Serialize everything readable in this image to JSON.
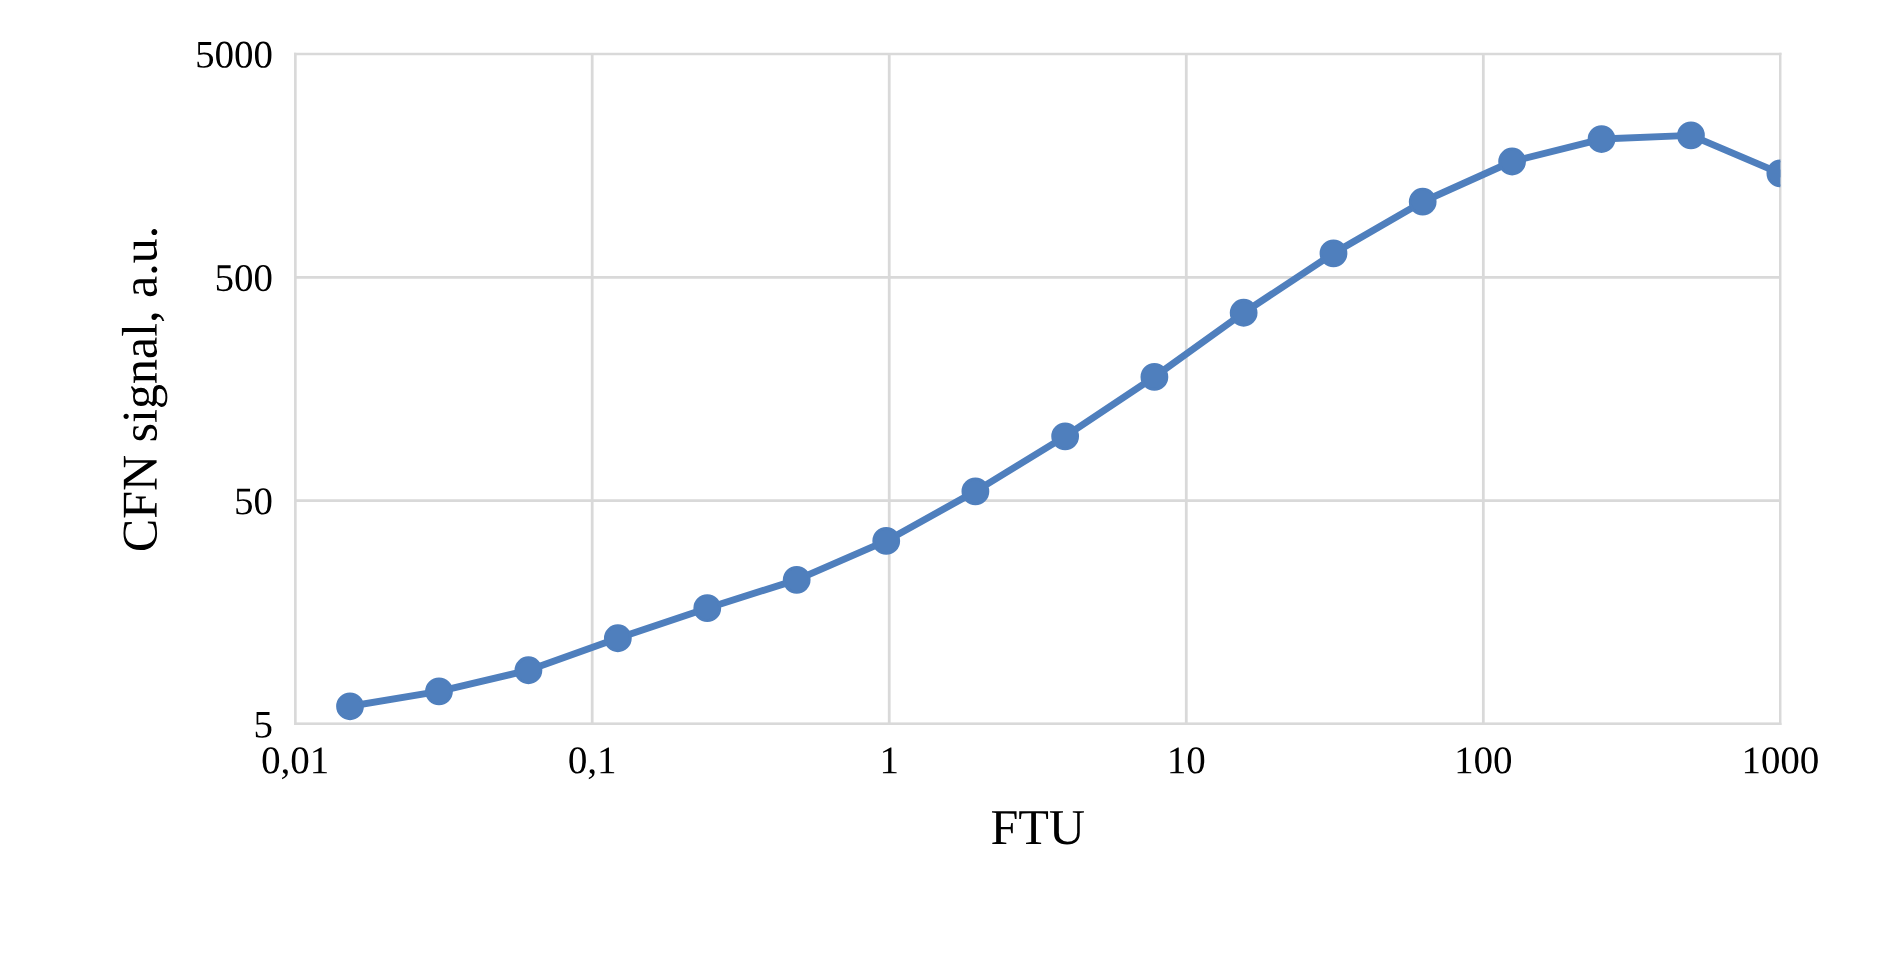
{
  "chart_data": {
    "type": "line",
    "xlabel": "FTU",
    "ylabel": "CFN signal, a.u.",
    "log": "xy",
    "grid": true,
    "marker": "circle",
    "line_style": "solid",
    "x": [
      0.0153,
      0.0305,
      0.061,
      0.122,
      0.244,
      0.488,
      0.977,
      1.95,
      3.91,
      7.81,
      15.6,
      31.3,
      62.5,
      125,
      250,
      500,
      1000
    ],
    "series": [
      {
        "color": "#4f7fbd",
        "values": [
          6.0,
          7.0,
          8.7,
          12.1,
          16.5,
          22.1,
          33,
          55,
          97,
          179,
          347,
          640,
          1090,
          1650,
          2080,
          2160,
          1460
        ]
      }
    ],
    "xlim": [
      0.01,
      1000
    ],
    "xticks": [
      {
        "value": 0.01,
        "label": "0,01"
      },
      {
        "value": 0.1,
        "label": "0,1"
      },
      1,
      10,
      100,
      1000
    ],
    "ylim": [
      5,
      5000
    ],
    "yticks": [
      5,
      50,
      500,
      5000
    ]
  }
}
